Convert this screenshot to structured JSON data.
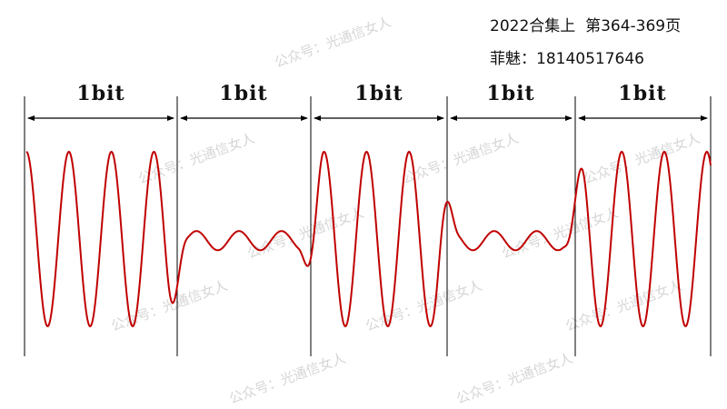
{
  "header": {
    "line1": "2022合集上  第364-369页",
    "line2": "菲魅：18140517646"
  },
  "watermark": "公众号：光通信女人",
  "diagram": {
    "bits": [
      {
        "label": "1bit",
        "value": 1
      },
      {
        "label": "1bit",
        "value": 0
      },
      {
        "label": "1bit",
        "value": 1
      },
      {
        "label": "1bit",
        "value": 0
      },
      {
        "label": "1bit",
        "value": 1
      }
    ],
    "amplitude_high": 1.0,
    "amplitude_low": 0.11,
    "cycles_per_bit": 3.5,
    "waveform_color": "#c00000",
    "line_color": "#000000"
  }
}
